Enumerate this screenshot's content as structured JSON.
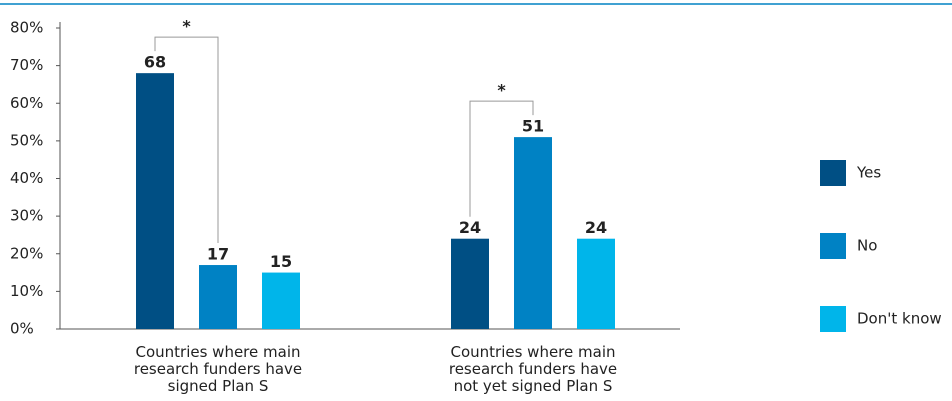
{
  "chart_data": {
    "type": "bar",
    "categories": [
      "Countries where main research funders have signed Plan S",
      "Countries where main research funders have not yet signed Plan S"
    ],
    "series": [
      {
        "name": "Yes",
        "color": "#004f84",
        "values": [
          68,
          24
        ]
      },
      {
        "name": "No",
        "color": "#0082c4",
        "values": [
          17,
          51
        ]
      },
      {
        "name": "Don't know",
        "color": "#00b5ea",
        "values": [
          15,
          24
        ]
      }
    ],
    "annotations": [
      "*",
      "*"
    ],
    "ylim": [
      0,
      80
    ],
    "yticks": [
      {
        "value": 0,
        "label": "0%"
      },
      {
        "value": 10,
        "label": "10%"
      },
      {
        "value": 20,
        "label": "20%"
      },
      {
        "value": 30,
        "label": "30%"
      },
      {
        "value": 40,
        "label": "40%"
      },
      {
        "value": 50,
        "label": "50%"
      },
      {
        "value": 60,
        "label": "60%"
      },
      {
        "value": 70,
        "label": "70%"
      },
      {
        "value": 80,
        "label": "80%"
      }
    ],
    "legend": "right"
  }
}
